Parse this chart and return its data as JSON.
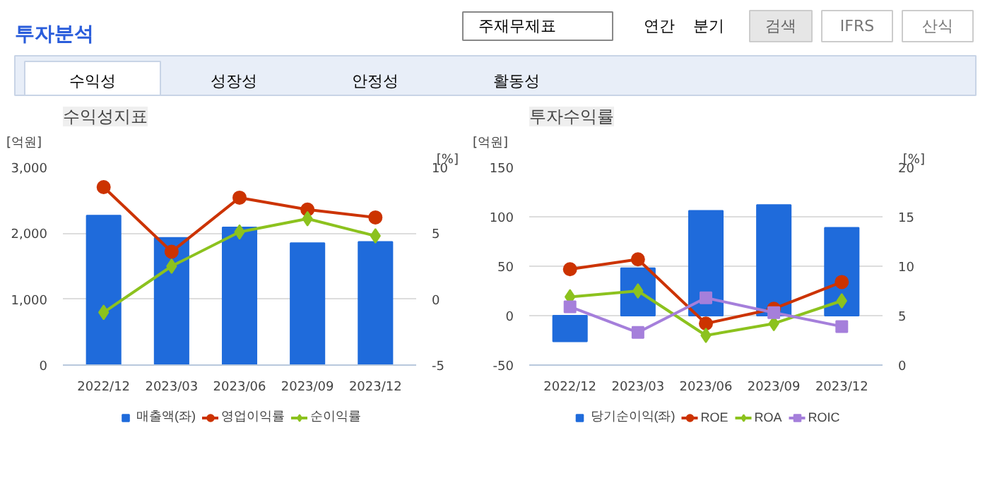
{
  "chart_data": [
    {
      "type": "bar",
      "title": "수익성지표",
      "annotations": [
        "투자분석",
        "주재무제표",
        "연간",
        "분기",
        "검색",
        "IFRS",
        "산식",
        "수익성",
        "성장성",
        "안정성",
        "활동성"
      ],
      "categories": [
        "2022/12",
        "2023/03",
        "2023/06",
        "2023/09",
        "2023/12"
      ],
      "ylabel": "[억원]",
      "y2label": "[%]",
      "ylim": [
        0,
        3000
      ],
      "yticks": [
        0,
        {
          "value": 1000,
          "label": "1,000"
        },
        {
          "value": 2000,
          "label": "2,000"
        },
        {
          "value": 3000,
          "label": "3,000"
        }
      ],
      "y2lim": [
        -5,
        10
      ],
      "y2ticks": [
        -5,
        0,
        5,
        10
      ],
      "grid": "y",
      "legend": "bottom",
      "series": [
        {
          "name": "매출액(좌)",
          "color": "#1f6bdb",
          "values": [
            2270,
            1930,
            2090,
            1850,
            1870
          ]
        },
        {
          "name": "영업이익률",
          "type": "line",
          "axis": "y2",
          "marker": "circle",
          "color": "#cc3300",
          "values": [
            8.5,
            3.6,
            7.7,
            6.8,
            6.2
          ]
        },
        {
          "name": "순이익률",
          "type": "line",
          "axis": "y2",
          "marker": "diamond",
          "color": "#8cc21e",
          "values": [
            -1.0,
            2.5,
            5.1,
            6.1,
            4.8
          ]
        }
      ]
    },
    {
      "type": "bar",
      "title": "투자수익률",
      "categories": [
        "2022/12",
        "2023/03",
        "2023/06",
        "2023/09",
        "2023/12"
      ],
      "ylabel": "[억원]",
      "y2label": "[%]",
      "ylim": [
        -50,
        150
      ],
      "yticks": [
        -50,
        0,
        50,
        100,
        150
      ],
      "y2lim": [
        0,
        20
      ],
      "y2ticks": [
        0,
        5,
        10,
        15,
        20
      ],
      "grid": "y",
      "legend": "bottom",
      "series": [
        {
          "name": "당기순이익(좌)",
          "color": "#1f6bdb",
          "values": [
            -26,
            48,
            106,
            112,
            89
          ]
        },
        {
          "name": "ROE",
          "type": "line",
          "axis": "y2",
          "marker": "circle",
          "color": "#cc3300",
          "values": [
            9.7,
            10.7,
            4.2,
            5.7,
            8.4
          ]
        },
        {
          "name": "ROA",
          "type": "line",
          "axis": "y2",
          "marker": "diamond",
          "color": "#8cc21e",
          "values": [
            6.9,
            7.5,
            3.0,
            4.2,
            6.5
          ]
        },
        {
          "name": "ROIC",
          "type": "line",
          "axis": "y2",
          "marker": "square",
          "color": "#a57fdb",
          "values": [
            5.9,
            3.3,
            6.8,
            5.3,
            3.9
          ]
        }
      ]
    }
  ]
}
